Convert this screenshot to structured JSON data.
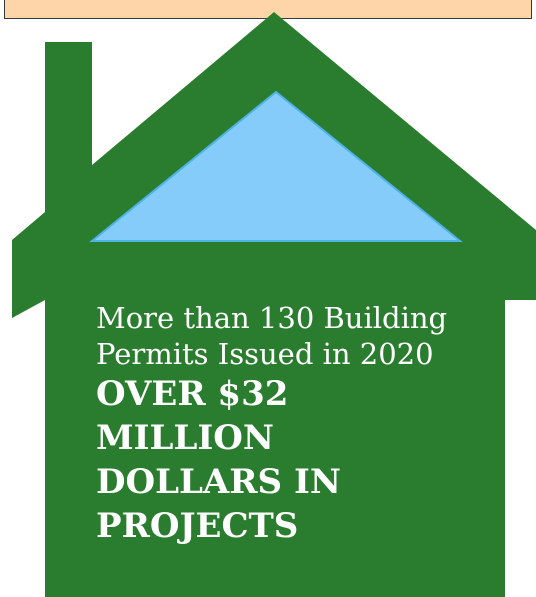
{
  "colors": {
    "house_green": "#2a7d2e",
    "window_blue": "#86ccfb",
    "window_edge": "#4fb3e6",
    "banner_fill": "#fdd5a8",
    "text": "#ffffff"
  },
  "caption": {
    "line1": "More than 130 Building",
    "line2": "Permits Issued in 2020",
    "line3": "OVER $32 MILLION",
    "line4": "DOLLARS IN",
    "line5": "PROJECTS"
  }
}
